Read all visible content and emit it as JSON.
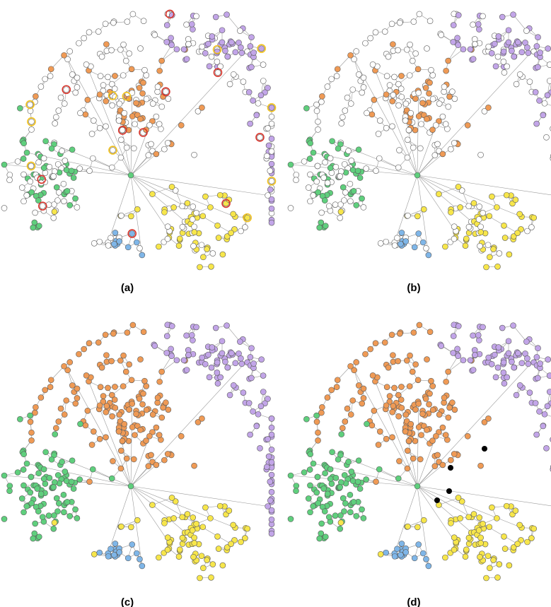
{
  "figure": {
    "panels": [
      {
        "id": "a",
        "label": "(a)",
        "show_uncolored": true,
        "seed_rings": true,
        "bridge_nodes": false
      },
      {
        "id": "b",
        "label": "(b)",
        "show_uncolored": true,
        "seed_rings": false,
        "bridge_nodes": false
      },
      {
        "id": "c",
        "label": "(c)",
        "show_uncolored": false,
        "seed_rings": false,
        "bridge_nodes": false
      },
      {
        "id": "d",
        "label": "(d)",
        "show_uncolored": false,
        "seed_rings": false,
        "bridge_nodes": true
      }
    ],
    "communities": [
      {
        "name": "purple",
        "color": "#c2a5e8"
      },
      {
        "name": "orange",
        "color": "#ef9a55"
      },
      {
        "name": "green",
        "color": "#5fcf7d"
      },
      {
        "name": "yellow",
        "color": "#f7e64b"
      },
      {
        "name": "blue",
        "color": "#7fb6e8"
      }
    ],
    "uncolored_node_color": "#ffffff",
    "edge_color": "#9a9a9a",
    "bridge_node_color": "#000000",
    "seed_ring_colors": [
      "#d9342b",
      "#f2c21b"
    ]
  }
}
